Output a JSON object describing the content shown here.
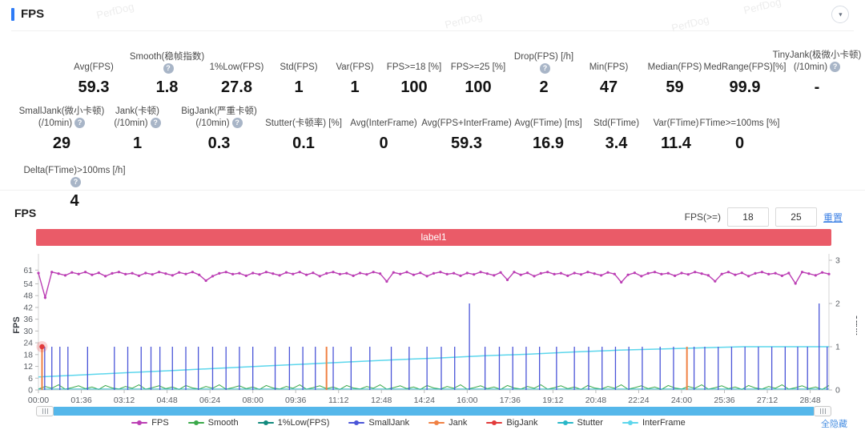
{
  "header": {
    "title": "FPS"
  },
  "watermark": "PerfDog",
  "icons": {
    "collapse": "▼"
  },
  "stats": {
    "rows": [
      [
        {
          "label": "Avg(FPS)",
          "value": "59.3"
        },
        {
          "label": "Smooth(稳帧指数)",
          "value": "1.8",
          "help": true
        },
        {
          "label": "1%Low(FPS)",
          "value": "27.8"
        },
        {
          "label": "Std(FPS)",
          "value": "1"
        },
        {
          "label": "Var(FPS)",
          "value": "1"
        },
        {
          "label": "FPS>=18 [%]",
          "value": "100"
        },
        {
          "label": "FPS>=25 [%]",
          "value": "100"
        },
        {
          "label": "Drop(FPS) [/h]",
          "value": "2",
          "help": true
        },
        {
          "label": "Min(FPS)",
          "value": "47"
        },
        {
          "label": "Median(FPS)",
          "value": "59"
        },
        {
          "label": "MedRange(FPS)[%]",
          "value": "99.9"
        },
        {
          "label": "TinyJank(极微小卡顿)",
          "label2": "(/10min)",
          "value": "-",
          "help": true
        }
      ],
      [
        {
          "label": "SmallJank(微小卡顿)",
          "label2": "(/10min)",
          "value": "29",
          "help": true
        },
        {
          "label": "Jank(卡顿)",
          "label2": "(/10min)",
          "value": "1",
          "help": true
        },
        {
          "label": "BigJank(严重卡顿)",
          "label2": "(/10min)",
          "value": "0.3",
          "help": true
        },
        {
          "label": "Stutter(卡顿率) [%]",
          "value": "0.1"
        },
        {
          "label": "Avg(InterFrame)",
          "value": "0"
        },
        {
          "label": "Avg(FPS+InterFrame)",
          "value": "59.3"
        },
        {
          "label": "Avg(FTime) [ms]",
          "value": "16.9"
        },
        {
          "label": "Std(FTime)",
          "value": "3.4"
        },
        {
          "label": "Var(FTime)",
          "value": "11.4"
        },
        {
          "label": "FTime>=100ms [%]",
          "value": "0"
        }
      ],
      [
        {
          "label": "Delta(FTime)>100ms [/h]",
          "value": "4",
          "help": true
        }
      ]
    ]
  },
  "chart_section": {
    "title": "FPS",
    "threshold_label": "FPS(>=)",
    "threshold_low": "18",
    "threshold_high": "25",
    "reset_label": "重置",
    "banner_label": "label1",
    "hide_all_label": "全隐藏"
  },
  "chart_data": {
    "type": "line",
    "title": "FPS",
    "x_axis": {
      "unit": "mm:ss",
      "tick_labels": [
        "00:00",
        "01:36",
        "03:12",
        "04:48",
        "06:24",
        "08:00",
        "09:36",
        "11:12",
        "12:48",
        "14:24",
        "16:00",
        "17:36",
        "19:12",
        "20:48",
        "22:24",
        "24:00",
        "25:36",
        "27:12",
        "28:48"
      ],
      "tick_interval_s": 96,
      "x_max_s": 1770
    },
    "left_axis": {
      "label": "FPS",
      "ticks": [
        61,
        54,
        48,
        42,
        36,
        30,
        24,
        18,
        12,
        6,
        0
      ],
      "scale_max": 66
    },
    "right_axis": {
      "label": "Jank",
      "ticks": [
        3,
        2,
        1,
        0
      ],
      "scale_max": 3
    },
    "series": [
      {
        "name": "FPS",
        "axis": "left",
        "type": "line",
        "color": "#bb3eb4",
        "marker": true,
        "x_step_s": 15,
        "values": [
          59.5,
          47,
          60,
          59.2,
          58.3,
          59.8,
          59,
          60,
          58.6,
          59.6,
          57.9,
          59.3,
          60,
          58.9,
          59.4,
          58.1,
          59.5,
          58.8,
          60,
          59.2,
          58.3,
          59.8,
          59,
          60,
          58.6,
          55.6,
          57.9,
          59.3,
          60,
          58.9,
          59.4,
          58.1,
          59.5,
          58.8,
          60,
          59.2,
          58.3,
          59.8,
          59,
          60,
          58.6,
          59.6,
          57.9,
          59.3,
          60,
          58.9,
          59.4,
          58.1,
          59.5,
          58.8,
          60,
          59.2,
          55.2,
          59.8,
          59,
          60,
          58.6,
          59.6,
          57.9,
          59.3,
          60,
          58.9,
          59.4,
          58.1,
          59.5,
          58.8,
          60,
          59.2,
          58.3,
          59.8,
          56,
          60,
          58.6,
          59.6,
          57.9,
          59.3,
          60,
          58.9,
          59.4,
          58.1,
          59.5,
          58.8,
          60,
          59.2,
          58.3,
          59.8,
          59,
          54.8,
          58.6,
          59.6,
          57.9,
          59.3,
          60,
          58.9,
          59.4,
          58.1,
          59.5,
          58.8,
          60,
          59.2,
          58.3,
          55.3,
          59,
          60,
          58.6,
          59.6,
          57.9,
          59.3,
          60,
          58.9,
          59.4,
          58.1,
          59.5,
          54.2,
          60,
          59.2,
          58.3,
          59.8,
          59
        ]
      },
      {
        "name": "Smooth",
        "axis": "left",
        "type": "line",
        "color": "#3aa94a",
        "x_step_s": 15,
        "values": [
          0.5,
          1.8,
          0.9,
          2.6,
          0.4,
          1.2,
          2.1,
          0.7,
          1.5,
          0.3,
          2.3,
          1.0,
          0.5,
          1.8,
          0.9,
          2.6,
          0.4,
          1.2,
          2.1,
          0.7,
          1.5,
          0.3,
          2.3,
          1.0,
          0.5,
          1.8,
          0.9,
          2.6,
          0.4,
          1.2,
          2.1,
          0.7,
          1.5,
          0.3,
          2.3,
          1.0,
          0.5,
          1.8,
          0.9,
          2.6,
          0.4,
          1.2,
          2.1,
          0.7,
          1.5,
          0.3,
          2.3,
          1.0,
          0.5,
          1.8,
          0.9,
          2.6,
          0.4,
          1.2,
          2.1,
          0.7,
          1.5,
          0.3,
          2.3,
          1.0,
          0.5,
          1.8,
          0.9,
          2.6,
          0.4,
          1.2,
          2.1,
          0.7,
          1.5,
          0.3,
          2.3,
          1.0,
          0.5,
          1.8,
          0.9,
          2.6,
          0.4,
          1.2,
          2.1,
          0.7,
          1.5,
          0.3,
          2.3,
          1.0,
          0.5,
          1.8,
          0.9,
          2.6,
          0.4,
          1.2,
          2.1,
          0.7,
          1.5,
          0.3,
          2.3,
          1.0,
          0.5,
          1.8,
          0.9,
          2.6,
          0.4,
          1.2,
          2.1,
          0.7,
          1.5,
          0.3,
          2.3,
          1.0,
          0.5,
          1.8,
          0.9,
          2.6,
          0.4,
          1.2,
          2.1,
          0.7,
          1.5,
          0.3,
          2.3
        ]
      },
      {
        "name": "1%Low(FPS)",
        "axis": "left",
        "type": "line",
        "color": "#128a7e",
        "points": []
      },
      {
        "name": "SmallJank",
        "axis": "right",
        "type": "spikes",
        "color": "#4a55d8",
        "points": [
          [
            14,
            1
          ],
          [
            30,
            1
          ],
          [
            48,
            1
          ],
          [
            66,
            1
          ],
          [
            110,
            1
          ],
          [
            170,
            1
          ],
          [
            200,
            1
          ],
          [
            230,
            1
          ],
          [
            252,
            1
          ],
          [
            272,
            1
          ],
          [
            300,
            1
          ],
          [
            330,
            1
          ],
          [
            358,
            1
          ],
          [
            390,
            1
          ],
          [
            420,
            1
          ],
          [
            450,
            1
          ],
          [
            480,
            1
          ],
          [
            530,
            1
          ],
          [
            562,
            1
          ],
          [
            592,
            1
          ],
          [
            620,
            1
          ],
          [
            660,
            1
          ],
          [
            700,
            1
          ],
          [
            742,
            1
          ],
          [
            790,
            1
          ],
          [
            830,
            1
          ],
          [
            870,
            1
          ],
          [
            902,
            1
          ],
          [
            932,
            1
          ],
          [
            965,
            2
          ],
          [
            1000,
            1
          ],
          [
            1032,
            1
          ],
          [
            1062,
            1
          ],
          [
            1092,
            1
          ],
          [
            1122,
            1
          ],
          [
            1160,
            1
          ],
          [
            1200,
            1
          ],
          [
            1232,
            1
          ],
          [
            1262,
            1
          ],
          [
            1292,
            1
          ],
          [
            1322,
            1
          ],
          [
            1352,
            1
          ],
          [
            1392,
            1
          ],
          [
            1422,
            1
          ],
          [
            1468,
            1
          ],
          [
            1492,
            1
          ],
          [
            1522,
            1
          ],
          [
            1552,
            1
          ],
          [
            1582,
            1
          ],
          [
            1612,
            1
          ],
          [
            1642,
            1
          ],
          [
            1672,
            1
          ],
          [
            1700,
            1
          ],
          [
            1722,
            1
          ],
          [
            1748,
            2
          ],
          [
            1766,
            1
          ]
        ]
      },
      {
        "name": "Jank",
        "axis": "right",
        "type": "spikes",
        "color": "#f08144",
        "points": [
          [
            8,
            1
          ],
          [
            645,
            1
          ],
          [
            1452,
            1
          ]
        ]
      },
      {
        "name": "BigJank",
        "axis": "right",
        "type": "scatter-halo",
        "color": "#e23b3b",
        "points": [
          [
            8,
            1
          ]
        ]
      },
      {
        "name": "Stutter",
        "axis": "right",
        "type": "line",
        "color": "#29b7c8",
        "points": [
          [
            0,
            0.02
          ],
          [
            1770,
            0.02
          ]
        ]
      },
      {
        "name": "InterFrame",
        "axis": "right",
        "type": "line",
        "color": "#5cd6ec",
        "points": [
          [
            0,
            0.3
          ],
          [
            100,
            0.35
          ],
          [
            200,
            0.4
          ],
          [
            300,
            0.45
          ],
          [
            400,
            0.5
          ],
          [
            500,
            0.55
          ],
          [
            600,
            0.6
          ],
          [
            700,
            0.65
          ],
          [
            800,
            0.7
          ],
          [
            900,
            0.74
          ],
          [
            1000,
            0.79
          ],
          [
            1100,
            0.83
          ],
          [
            1200,
            0.88
          ],
          [
            1300,
            0.92
          ],
          [
            1400,
            0.95
          ],
          [
            1500,
            0.98
          ],
          [
            1580,
            1
          ],
          [
            1770,
            1
          ]
        ]
      }
    ]
  }
}
